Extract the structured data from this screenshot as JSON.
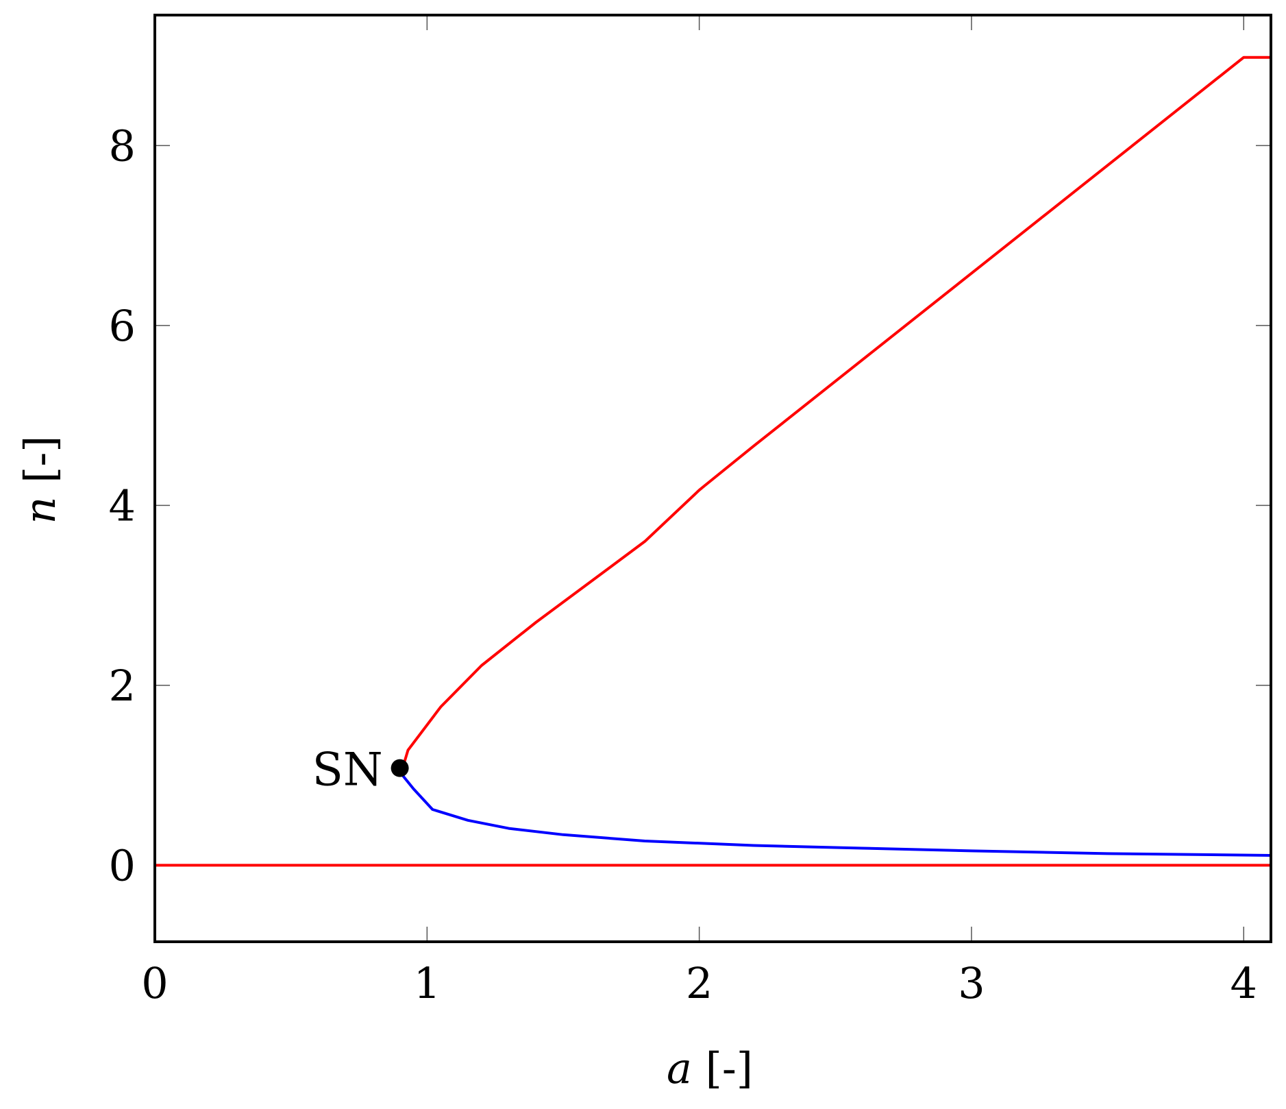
{
  "chart_data": {
    "type": "line",
    "title": "",
    "xlabel": {
      "var": "a",
      "unit": " [-]"
    },
    "ylabel": {
      "var": "n",
      "unit": " [-]"
    },
    "xlim": [
      0,
      4.1
    ],
    "ylim": [
      -0.85,
      9.45
    ],
    "xticks": [
      0,
      1,
      2,
      3,
      4
    ],
    "yticks": [
      0,
      2,
      4,
      6,
      8
    ],
    "grid": false,
    "series": [
      {
        "color": "#ff0000",
        "x": [
          0.91,
          0.93,
          0.97,
          1.05,
          1.2,
          1.4,
          1.6,
          1.8,
          2.0,
          2.02,
          2.2,
          2.5,
          2.8,
          3.1,
          3.4,
          3.7,
          4.0,
          4.1
        ],
        "y": [
          1.08,
          1.28,
          1.44,
          1.76,
          2.22,
          2.7,
          3.15,
          3.6,
          4.17,
          4.22,
          4.66,
          5.38,
          6.1,
          6.82,
          7.54,
          8.26,
          8.98,
          8.98
        ]
      },
      {
        "color": "#0000ff",
        "x": [
          0.91,
          0.95,
          1.02,
          1.15,
          1.3,
          1.5,
          1.8,
          2.2,
          2.6,
          3.0,
          3.5,
          4.1
        ],
        "y": [
          1.0,
          0.85,
          0.62,
          0.5,
          0.41,
          0.34,
          0.27,
          0.22,
          0.19,
          0.16,
          0.13,
          0.11
        ]
      },
      {
        "color": "#ff0000",
        "x": [
          0,
          4.1
        ],
        "y": [
          0,
          0
        ]
      }
    ],
    "annotations": [
      {
        "text": "SN",
        "x": 0.9,
        "y": 1.08
      }
    ]
  }
}
